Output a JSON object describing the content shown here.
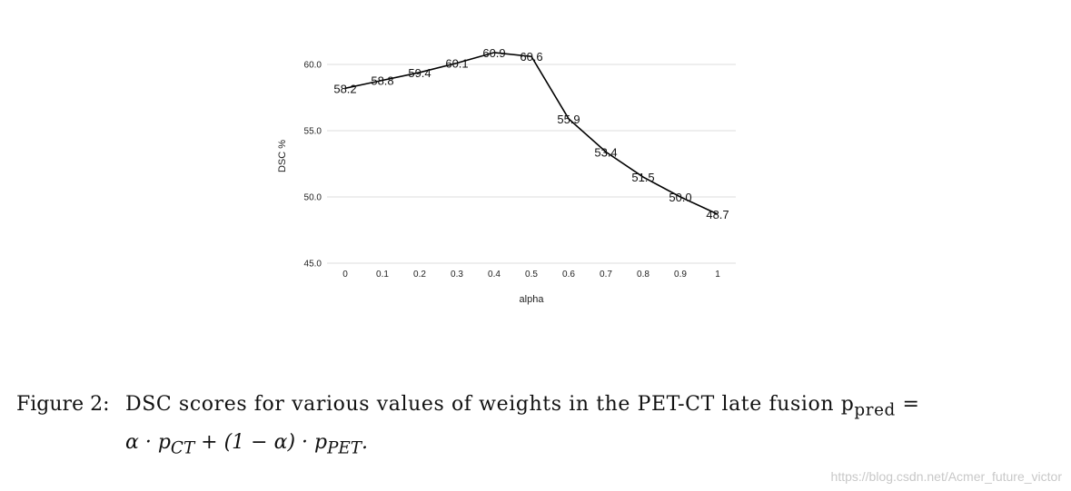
{
  "chart_data": {
    "type": "line",
    "xlabel": "alpha",
    "ylabel": "DSC %",
    "ylim": [
      45.0,
      62.0
    ],
    "yticks": [
      "45.0",
      "50.0",
      "55.0",
      "60.0"
    ],
    "yticks_values": [
      45,
      50,
      55,
      60
    ],
    "categories": [
      "0",
      "0.1",
      "0.2",
      "0.3",
      "0.4",
      "0.5",
      "0.6",
      "0.7",
      "0.8",
      "0.9",
      "1"
    ],
    "series": [
      {
        "name": "DSC",
        "values": [
          58.2,
          58.8,
          59.4,
          60.1,
          60.9,
          60.6,
          55.9,
          53.4,
          51.5,
          50.0,
          48.7
        ],
        "labels": [
          "58.2",
          "58.8",
          "59.4",
          "60.1",
          "60.9",
          "60.6",
          "55.9",
          "53.4",
          "51.5",
          "50.0",
          "48.7"
        ],
        "highlight_index": 4,
        "line_color": "#000000",
        "label_color": "#111111",
        "highlight_color": "#e02020"
      }
    ],
    "grid": true,
    "grid_color": "#dddddd"
  },
  "caption": {
    "label": "Figure 2:",
    "line1": "DSC scores for various values of weights in the PET-CT late fusion p",
    "line1_sub": "pred",
    "line1_tail": " =",
    "line2": "α · p",
    "line2_sub1": "CT",
    "line2_mid": " + (1 − α) · p",
    "line2_sub2": "PET",
    "line2_tail": "."
  },
  "watermark": "https://blog.csdn.net/Acmer_future_victor"
}
